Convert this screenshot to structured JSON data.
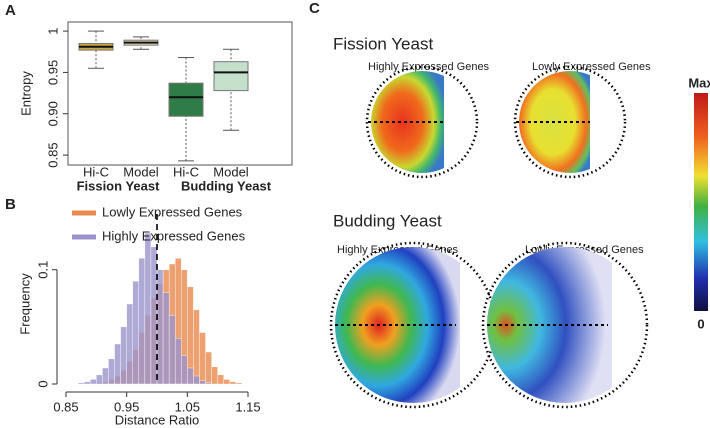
{
  "panel_labels": [
    "A",
    "B",
    "C"
  ],
  "chart_data": [
    {
      "type": "box",
      "ylabel": "Entropy",
      "categories": [
        "Hi-C",
        "Model",
        "Hi-C",
        "Model"
      ],
      "groups": [
        "Fission Yeast",
        "Budding Yeast"
      ],
      "ylim": [
        0.838,
        1.011
      ],
      "yticks": [
        0.85,
        {
          "value": 0.9,
          "label": "0.90"
        },
        0.95,
        1
      ],
      "boxes": [
        {
          "low": 0.955,
          "q1": 0.977,
          "median": 0.981,
          "q3": 0.985,
          "high": 1.0,
          "color": "#c9a63e"
        },
        {
          "low": 0.978,
          "q1": 0.983,
          "median": 0.986,
          "q3": 0.989,
          "high": 0.993,
          "color": "#e4ddb2"
        },
        {
          "low": 0.843,
          "q1": 0.897,
          "median": 0.92,
          "q3": 0.937,
          "high": 0.968,
          "color": "#2f7c46"
        },
        {
          "low": 0.88,
          "q1": 0.928,
          "median": 0.95,
          "q3": 0.963,
          "high": 0.978,
          "color": "#c4dfca"
        }
      ]
    },
    {
      "type": "histogram",
      "xlabel": "Distance Ratio",
      "ylabel": "Frequency",
      "xlim": [
        0.85,
        1.15
      ],
      "xticks": [
        0.85,
        0.95,
        1.05,
        1.15
      ],
      "ylim": [
        0,
        0.14
      ],
      "yticks": [
        0,
        0.1
      ],
      "vline": 1,
      "bins": [
        0.86,
        0.87,
        0.88,
        0.89,
        0.9,
        0.91,
        0.92,
        0.93,
        0.94,
        0.95,
        0.96,
        0.97,
        0.98,
        0.99,
        1.0,
        1.01,
        1.02,
        1.03,
        1.04,
        1.05,
        1.06,
        1.07,
        1.08,
        1.09,
        1.1,
        1.11,
        1.12,
        1.13,
        1.14
      ],
      "series": [
        {
          "name": "Lowly Expressed Genes",
          "color": "#e8894e",
          "values": [
            0,
            0,
            0,
            0,
            0.001,
            0.002,
            0.004,
            0.007,
            0.012,
            0.02,
            0.03,
            0.045,
            0.06,
            0.075,
            0.088,
            0.1,
            0.105,
            0.11,
            0.1,
            0.085,
            0.065,
            0.045,
            0.028,
            0.015,
            0.008,
            0.004,
            0.002,
            0.001
          ]
        },
        {
          "name": "Highly Expressed Genes",
          "color": "#9b93cc",
          "values": [
            0,
            0.001,
            0.002,
            0.004,
            0.008,
            0.014,
            0.022,
            0.035,
            0.05,
            0.07,
            0.09,
            0.11,
            0.132,
            0.12,
            0.1,
            0.08,
            0.06,
            0.04,
            0.025,
            0.014,
            0.007,
            0.003,
            0.001,
            0,
            0,
            0,
            0,
            0
          ]
        }
      ]
    }
  ],
  "panel_c": {
    "fission": {
      "title": "Fission Yeast",
      "high": "Highly Expressed Genes",
      "low": "Lowly Expressed Genes"
    },
    "budding": {
      "title": "Budding Yeast",
      "high": "Highly Expressed Genes",
      "low": "Lowly Expressed Genes"
    },
    "colorbar": {
      "max": "Max",
      "min": "0"
    }
  }
}
